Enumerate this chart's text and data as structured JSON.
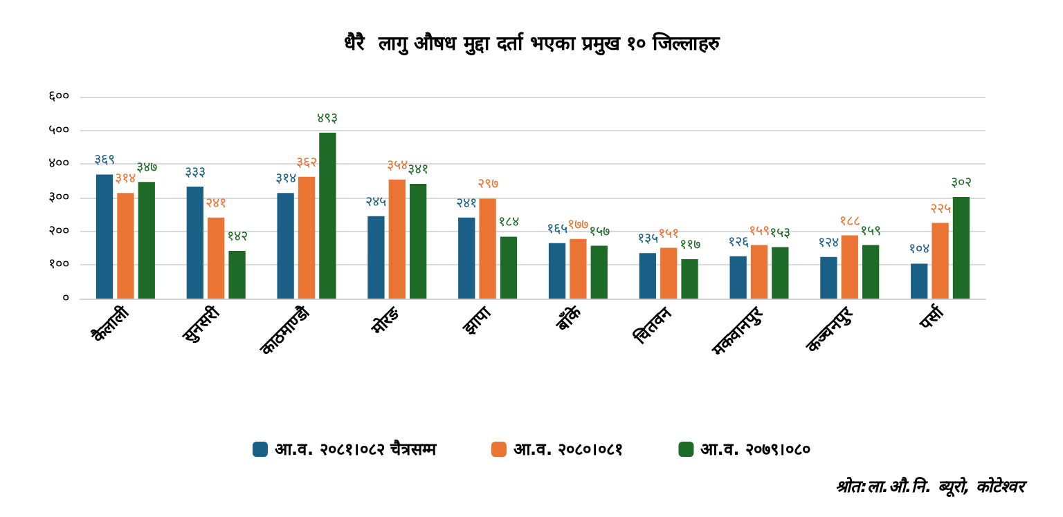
{
  "chart_data": {
    "type": "bar",
    "title": "धैरै  लागु औषध मुद्दा दर्ता भएका प्रमुख १० जिल्लाहरु",
    "categories": [
      "कैलाली",
      "सुनसरी",
      "काठमाण्डौ",
      "मोरङ",
      "झापा",
      "बाँके",
      "चितवन",
      "मकवानपुर",
      "कञ्चनपुर",
      "पर्सा"
    ],
    "series": [
      {
        "name": "आ.व. २०८१।०८२ चैत्रसम्म",
        "color": "#1a5f85",
        "values": [
          369,
          333,
          314,
          245,
          241,
          165,
          135,
          126,
          124,
          104
        ],
        "value_labels": [
          "३६९",
          "३३३",
          "३१४",
          "२४५",
          "२४१",
          "१६५",
          "१३५",
          "१२६",
          "१२४",
          "१०४"
        ]
      },
      {
        "name": "आ.व. २०८०।०८१",
        "color": "#ea7433",
        "values": [
          314,
          241,
          362,
          354,
          297,
          177,
          151,
          159,
          188,
          225
        ],
        "value_labels": [
          "३१४",
          "२४१",
          "३६२",
          "३५४",
          "२९७",
          "१७७",
          "१५१",
          "१५९",
          "१८८",
          "२२५"
        ]
      },
      {
        "name": "आ.व. २०७९।०८०",
        "color": "#1e6b27",
        "values": [
          347,
          142,
          493,
          341,
          184,
          157,
          117,
          153,
          159,
          302
        ],
        "value_labels": [
          "३४७",
          "१४२",
          "४९३",
          "३४१",
          "१८४",
          "१५७",
          "११७",
          "१५३",
          "१५९",
          "३०२"
        ]
      }
    ],
    "ylim": [
      0,
      600
    ],
    "yticks": [
      {
        "value": 0,
        "label": "०"
      },
      {
        "value": 100,
        "label": "१००"
      },
      {
        "value": 200,
        "label": "२००"
      },
      {
        "value": 300,
        "label": "३००"
      },
      {
        "value": 400,
        "label": "४००"
      },
      {
        "value": 500,
        "label": "५००"
      },
      {
        "value": 600,
        "label": "६००"
      }
    ],
    "grid": "y",
    "legend": "bottom",
    "annotations": [
      "श्रोत:ला.औ.नि. ब्यूरो, कोटेश्वर"
    ]
  }
}
